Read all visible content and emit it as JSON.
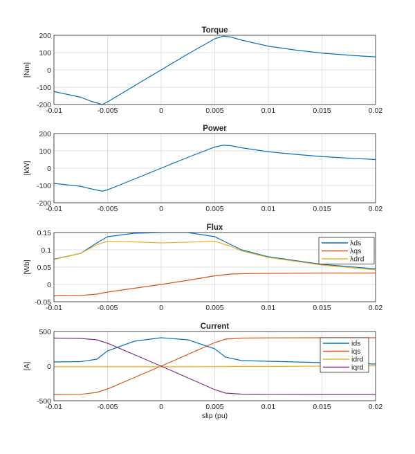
{
  "chart_data": [
    {
      "type": "line",
      "title": "Torque",
      "ylabel": "[Nm]",
      "xlabel": "",
      "xlim": [
        -0.01,
        0.02
      ],
      "ylim": [
        -200,
        200
      ],
      "grid": true,
      "xticks": [
        "-0.01",
        "-0.005",
        "0",
        "0.005",
        "0.01",
        "0.015",
        "0.02"
      ],
      "yticks": [
        "-200",
        "-100",
        "0",
        "100",
        "200"
      ],
      "x": [
        -0.01,
        -0.0075,
        -0.0065,
        -0.0055,
        -0.005,
        -0.0025,
        0,
        0.0025,
        0.005,
        0.0058,
        0.0065,
        0.0075,
        0.01,
        0.0125,
        0.015,
        0.0175,
        0.02
      ],
      "series": [
        {
          "color": "#0072BD",
          "values": [
            -125,
            -158,
            -182,
            -200,
            -185,
            -92,
            0,
            92,
            180,
            195,
            190,
            172,
            137,
            115,
            97,
            85,
            75
          ]
        }
      ]
    },
    {
      "type": "line",
      "title": "Power",
      "ylabel": "[kW]",
      "xlabel": "",
      "xlim": [
        -0.01,
        0.02
      ],
      "ylim": [
        -200,
        200
      ],
      "grid": true,
      "xticks": [
        "-0.01",
        "-0.005",
        "0",
        "0.005",
        "0.01",
        "0.015",
        "0.02"
      ],
      "yticks": [
        "-200",
        "-100",
        "0",
        "100",
        "200"
      ],
      "x": [
        -0.01,
        -0.0075,
        -0.0065,
        -0.0055,
        -0.005,
        -0.0025,
        0,
        0.0025,
        0.005,
        0.0058,
        0.0065,
        0.0075,
        0.01,
        0.0125,
        0.015,
        0.0175,
        0.02
      ],
      "series": [
        {
          "color": "#0072BD",
          "values": [
            -88,
            -105,
            -120,
            -133,
            -125,
            -63,
            0,
            63,
            122,
            133,
            130,
            118,
            95,
            80,
            67,
            58,
            50
          ]
        }
      ]
    },
    {
      "type": "line",
      "title": "Flux",
      "ylabel": "[Wb]",
      "xlabel": "",
      "xlim": [
        -0.01,
        0.02
      ],
      "ylim": [
        -0.05,
        0.15
      ],
      "grid": true,
      "legend": "top-right",
      "xticks": [
        "-0.01",
        "-0.005",
        "0",
        "0.005",
        "0.01",
        "0.015",
        "0.02"
      ],
      "yticks": [
        "-0.05",
        "0",
        "0.05",
        "0.1",
        "0.15"
      ],
      "x": [
        -0.01,
        -0.0075,
        -0.006,
        -0.005,
        -0.0025,
        0,
        0.0025,
        0.005,
        0.0065,
        0.0075,
        0.01,
        0.015,
        0.02
      ],
      "series": [
        {
          "name": "λds",
          "color": "#0072BD",
          "values": [
            0.073,
            0.09,
            0.12,
            0.138,
            0.148,
            0.15,
            0.15,
            0.138,
            0.115,
            0.1,
            0.08,
            0.058,
            0.045
          ]
        },
        {
          "name": "λqs",
          "color": "#D95319",
          "values": [
            -0.033,
            -0.032,
            -0.028,
            -0.022,
            -0.011,
            0,
            0.012,
            0.025,
            0.03,
            0.031,
            0.032,
            0.033,
            0.033
          ]
        },
        {
          "name": "λdrd",
          "color": "#EDB120",
          "values": [
            0.072,
            0.09,
            0.115,
            0.125,
            0.123,
            0.12,
            0.122,
            0.125,
            0.11,
            0.097,
            0.078,
            0.056,
            0.042
          ]
        }
      ]
    },
    {
      "type": "line",
      "title": "Current",
      "ylabel": "[A]",
      "xlabel": "slip (pu)",
      "xlim": [
        -0.01,
        0.02
      ],
      "ylim": [
        -500,
        500
      ],
      "grid": true,
      "legend": "top-right",
      "xticks": [
        "-0.01",
        "-0.005",
        "0",
        "0.005",
        "0.01",
        "0.015",
        "0.02"
      ],
      "yticks": [
        "-500",
        "0",
        "500"
      ],
      "x": [
        -0.01,
        -0.0075,
        -0.006,
        -0.005,
        -0.0025,
        0,
        0.0025,
        0.005,
        0.006,
        0.0075,
        0.01,
        0.015,
        0.02
      ],
      "series": [
        {
          "name": "ids",
          "color": "#0072BD",
          "values": [
            60,
            65,
            100,
            220,
            360,
            410,
            380,
            250,
            130,
            80,
            70,
            50,
            30
          ]
        },
        {
          "name": "iqs",
          "color": "#D95319",
          "values": [
            -410,
            -408,
            -380,
            -330,
            -165,
            0,
            170,
            340,
            390,
            405,
            408,
            410,
            410
          ]
        },
        {
          "name": "idrd",
          "color": "#EDB120",
          "values": [
            -10,
            -10,
            -10,
            -10,
            -10,
            -10,
            -10,
            -8,
            -6,
            -5,
            -5,
            0,
            10
          ]
        },
        {
          "name": "iqrd",
          "color": "#7E2F8E",
          "values": [
            405,
            400,
            380,
            330,
            165,
            0,
            -170,
            -340,
            -390,
            -405,
            -408,
            -410,
            -410
          ]
        }
      ]
    }
  ]
}
